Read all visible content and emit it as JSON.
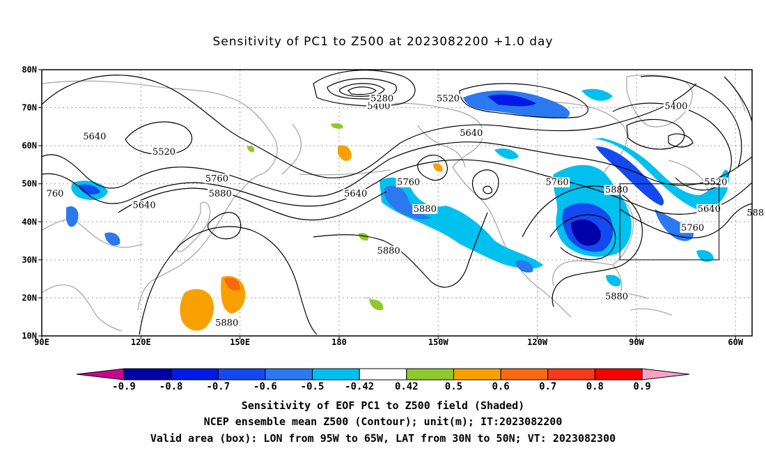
{
  "title": "Sensitivity of PC1 to Z500 at 2023082200 +1.0 day",
  "lat_ticks": [
    "10N",
    "20N",
    "30N",
    "40N",
    "50N",
    "60N",
    "70N",
    "80N"
  ],
  "lon_ticks": [
    "90E",
    "120E",
    "150E",
    "180",
    "150W",
    "120W",
    "90W",
    "60W"
  ],
  "contour_labels": [
    {
      "text": "5640",
      "lon": 106,
      "lat": 62
    },
    {
      "text": "5520",
      "lon": 127,
      "lat": 58
    },
    {
      "text": "5400",
      "lon": -168,
      "lat": 70
    },
    {
      "text": "5280",
      "lon": -167,
      "lat": 72
    },
    {
      "text": "5520",
      "lon": -147,
      "lat": 72
    },
    {
      "text": "5400",
      "lon": -78,
      "lat": 70
    },
    {
      "text": "5640",
      "lon": -140,
      "lat": 63
    },
    {
      "text": "5640",
      "lon": -175,
      "lat": 47
    },
    {
      "text": "5760",
      "lon": 143,
      "lat": 51
    },
    {
      "text": "5880",
      "lon": 144,
      "lat": 47
    },
    {
      "text": "5640",
      "lon": 121,
      "lat": 44
    },
    {
      "text": "5760",
      "lon": -159,
      "lat": 50
    },
    {
      "text": "5880",
      "lon": -154,
      "lat": 43
    },
    {
      "text": "5760",
      "lon": -114,
      "lat": 50
    },
    {
      "text": "5880",
      "lon": -96,
      "lat": 48
    },
    {
      "text": "5520",
      "lon": -66,
      "lat": 50
    },
    {
      "text": "5640",
      "lon": -68,
      "lat": 43
    },
    {
      "text": "5760",
      "lon": -73,
      "lat": 38
    },
    {
      "text": "588",
      "lon": -54,
      "lat": 42
    },
    {
      "text": "760",
      "lon": 94,
      "lat": 47
    },
    {
      "text": "5880",
      "lon": -165,
      "lat": 32
    },
    {
      "text": "5880",
      "lon": -96,
      "lat": 20
    },
    {
      "text": "5880",
      "lon": 146,
      "lat": 13
    }
  ],
  "valid_box": {
    "lon_min": -95,
    "lon_max": -65,
    "lat_min": 30,
    "lat_max": 50
  },
  "colorbar": {
    "labels": [
      "-0.9",
      "-0.8",
      "-0.7",
      "-0.6",
      "-0.5",
      "-0.42",
      "0.42",
      "0.5",
      "0.6",
      "0.7",
      "0.8",
      "0.9"
    ],
    "colors": [
      "#c8088c",
      "#0000a8",
      "#0018e8",
      "#1448f0",
      "#2c78f0",
      "#00c0f0",
      "#ffffff",
      "#90c830",
      "#f8a000",
      "#f86810",
      "#f83818",
      "#f80000",
      "#f8a0c8"
    ]
  },
  "captions": [
    "Sensitivity of EOF PC1 to Z500 field (Shaded)",
    "NCEP ensemble mean Z500 (Contour); unit(m); IT:2023082200",
    "Valid area (box): LON from 95W to 65W, LAT from 30N to 50N; VT: 2023082300"
  ]
}
